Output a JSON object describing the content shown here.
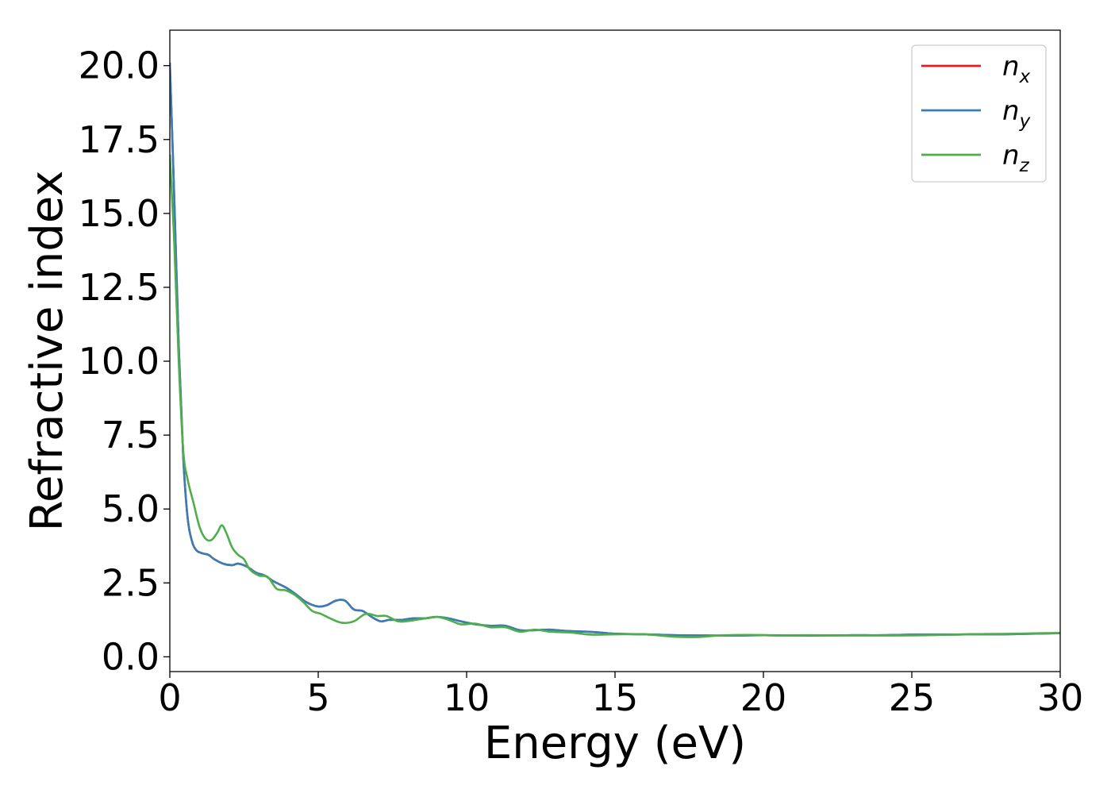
{
  "chart_data": {
    "type": "line",
    "xlabel": "Energy (eV)",
    "ylabel": "Refractive index",
    "xlim": [
      0,
      30
    ],
    "ylim": [
      -0.5,
      21.2
    ],
    "xticks": [
      0,
      5,
      10,
      15,
      20,
      25,
      30
    ],
    "xtick_labels": [
      "0",
      "5",
      "10",
      "15",
      "20",
      "25",
      "30"
    ],
    "yticks": [
      0.0,
      2.5,
      5.0,
      7.5,
      10.0,
      12.5,
      15.0,
      17.5,
      20.0
    ],
    "ytick_labels": [
      "0.0",
      "2.5",
      "5.0",
      "7.5",
      "10.0",
      "12.5",
      "15.0",
      "17.5",
      "20.0"
    ],
    "grid": false,
    "legend_position": "top-right",
    "series": [
      {
        "name": "n_x",
        "label_main": "n",
        "label_sub": "x",
        "color": "#e41a1c",
        "points": [
          [
            0.0,
            20.1
          ],
          [
            0.15,
            15.5
          ],
          [
            0.3,
            10.5
          ],
          [
            0.45,
            6.8
          ],
          [
            0.6,
            4.7
          ],
          [
            0.75,
            3.9
          ],
          [
            0.9,
            3.6
          ],
          [
            1.1,
            3.5
          ],
          [
            1.3,
            3.45
          ],
          [
            1.5,
            3.3
          ],
          [
            1.8,
            3.15
          ],
          [
            2.1,
            3.1
          ],
          [
            2.3,
            3.15
          ],
          [
            2.6,
            3.05
          ],
          [
            2.9,
            2.85
          ],
          [
            3.2,
            2.75
          ],
          [
            3.5,
            2.55
          ],
          [
            3.9,
            2.35
          ],
          [
            4.2,
            2.15
          ],
          [
            4.6,
            1.85
          ],
          [
            5.0,
            1.7
          ],
          [
            5.3,
            1.75
          ],
          [
            5.6,
            1.9
          ],
          [
            5.9,
            1.9
          ],
          [
            6.2,
            1.6
          ],
          [
            6.5,
            1.55
          ],
          [
            6.8,
            1.35
          ],
          [
            7.1,
            1.2
          ],
          [
            7.4,
            1.25
          ],
          [
            7.8,
            1.25
          ],
          [
            8.2,
            1.3
          ],
          [
            8.6,
            1.3
          ],
          [
            9.0,
            1.35
          ],
          [
            9.4,
            1.3
          ],
          [
            9.8,
            1.2
          ],
          [
            10.3,
            1.1
          ],
          [
            10.8,
            1.05
          ],
          [
            11.3,
            1.05
          ],
          [
            11.8,
            0.9
          ],
          [
            12.3,
            0.9
          ],
          [
            12.8,
            0.92
          ],
          [
            13.3,
            0.88
          ],
          [
            14.0,
            0.85
          ],
          [
            14.5,
            0.82
          ],
          [
            15.0,
            0.78
          ],
          [
            16.0,
            0.76
          ],
          [
            17.0,
            0.73
          ],
          [
            18.0,
            0.72
          ],
          [
            19.0,
            0.72
          ],
          [
            20.0,
            0.73
          ],
          [
            21.0,
            0.72
          ],
          [
            22.0,
            0.72
          ],
          [
            23.0,
            0.73
          ],
          [
            24.0,
            0.73
          ],
          [
            25.0,
            0.75
          ],
          [
            26.0,
            0.75
          ],
          [
            27.0,
            0.76
          ],
          [
            28.0,
            0.76
          ],
          [
            29.0,
            0.78
          ],
          [
            30.0,
            0.8
          ]
        ]
      },
      {
        "name": "n_y",
        "label_main": "n",
        "label_sub": "y",
        "color": "#377eb8",
        "points": [
          [
            0.0,
            20.1
          ],
          [
            0.15,
            15.5
          ],
          [
            0.3,
            10.5
          ],
          [
            0.45,
            6.8
          ],
          [
            0.6,
            4.7
          ],
          [
            0.75,
            3.9
          ],
          [
            0.9,
            3.6
          ],
          [
            1.1,
            3.5
          ],
          [
            1.3,
            3.45
          ],
          [
            1.5,
            3.3
          ],
          [
            1.8,
            3.15
          ],
          [
            2.1,
            3.1
          ],
          [
            2.3,
            3.15
          ],
          [
            2.6,
            3.05
          ],
          [
            2.9,
            2.85
          ],
          [
            3.2,
            2.75
          ],
          [
            3.5,
            2.55
          ],
          [
            3.9,
            2.35
          ],
          [
            4.2,
            2.15
          ],
          [
            4.6,
            1.85
          ],
          [
            5.0,
            1.7
          ],
          [
            5.3,
            1.75
          ],
          [
            5.6,
            1.9
          ],
          [
            5.9,
            1.9
          ],
          [
            6.2,
            1.6
          ],
          [
            6.5,
            1.55
          ],
          [
            6.8,
            1.35
          ],
          [
            7.1,
            1.2
          ],
          [
            7.4,
            1.25
          ],
          [
            7.8,
            1.25
          ],
          [
            8.2,
            1.3
          ],
          [
            8.6,
            1.3
          ],
          [
            9.0,
            1.35
          ],
          [
            9.4,
            1.3
          ],
          [
            9.8,
            1.2
          ],
          [
            10.3,
            1.1
          ],
          [
            10.8,
            1.05
          ],
          [
            11.3,
            1.05
          ],
          [
            11.8,
            0.9
          ],
          [
            12.3,
            0.9
          ],
          [
            12.8,
            0.92
          ],
          [
            13.3,
            0.88
          ],
          [
            14.0,
            0.85
          ],
          [
            14.5,
            0.82
          ],
          [
            15.0,
            0.78
          ],
          [
            16.0,
            0.76
          ],
          [
            17.0,
            0.73
          ],
          [
            18.0,
            0.72
          ],
          [
            19.0,
            0.72
          ],
          [
            20.0,
            0.73
          ],
          [
            21.0,
            0.72
          ],
          [
            22.0,
            0.72
          ],
          [
            23.0,
            0.73
          ],
          [
            24.0,
            0.73
          ],
          [
            25.0,
            0.75
          ],
          [
            26.0,
            0.75
          ],
          [
            27.0,
            0.76
          ],
          [
            28.0,
            0.76
          ],
          [
            29.0,
            0.78
          ],
          [
            30.0,
            0.8
          ]
        ]
      },
      {
        "name": "n_z",
        "label_main": "n",
        "label_sub": "z",
        "color": "#4daf4a",
        "points": [
          [
            0.0,
            17.0
          ],
          [
            0.15,
            14.0
          ],
          [
            0.3,
            10.0
          ],
          [
            0.45,
            7.0
          ],
          [
            0.6,
            6.0
          ],
          [
            0.8,
            5.2
          ],
          [
            1.0,
            4.4
          ],
          [
            1.2,
            4.0
          ],
          [
            1.4,
            3.95
          ],
          [
            1.6,
            4.2
          ],
          [
            1.75,
            4.45
          ],
          [
            1.9,
            4.2
          ],
          [
            2.1,
            3.7
          ],
          [
            2.3,
            3.45
          ],
          [
            2.5,
            3.3
          ],
          [
            2.7,
            2.95
          ],
          [
            3.0,
            2.75
          ],
          [
            3.3,
            2.7
          ],
          [
            3.6,
            2.3
          ],
          [
            3.9,
            2.25
          ],
          [
            4.2,
            2.1
          ],
          [
            4.5,
            1.85
          ],
          [
            4.8,
            1.55
          ],
          [
            5.1,
            1.45
          ],
          [
            5.4,
            1.3
          ],
          [
            5.8,
            1.15
          ],
          [
            6.2,
            1.2
          ],
          [
            6.6,
            1.45
          ],
          [
            7.0,
            1.38
          ],
          [
            7.3,
            1.38
          ],
          [
            7.7,
            1.2
          ],
          [
            8.1,
            1.22
          ],
          [
            8.6,
            1.3
          ],
          [
            9.0,
            1.35
          ],
          [
            9.4,
            1.25
          ],
          [
            9.8,
            1.1
          ],
          [
            10.3,
            1.12
          ],
          [
            10.8,
            1.0
          ],
          [
            11.3,
            1.0
          ],
          [
            11.8,
            0.85
          ],
          [
            12.3,
            0.92
          ],
          [
            12.8,
            0.85
          ],
          [
            13.5,
            0.82
          ],
          [
            14.2,
            0.75
          ],
          [
            15.0,
            0.76
          ],
          [
            16.0,
            0.76
          ],
          [
            17.0,
            0.68
          ],
          [
            17.8,
            0.67
          ],
          [
            18.5,
            0.72
          ],
          [
            19.5,
            0.74
          ],
          [
            20.5,
            0.72
          ],
          [
            21.5,
            0.73
          ],
          [
            22.5,
            0.72
          ],
          [
            23.5,
            0.72
          ],
          [
            24.5,
            0.72
          ],
          [
            25.5,
            0.73
          ],
          [
            26.5,
            0.75
          ],
          [
            27.5,
            0.77
          ],
          [
            28.5,
            0.78
          ],
          [
            29.5,
            0.8
          ],
          [
            30.0,
            0.8
          ]
        ]
      }
    ]
  }
}
